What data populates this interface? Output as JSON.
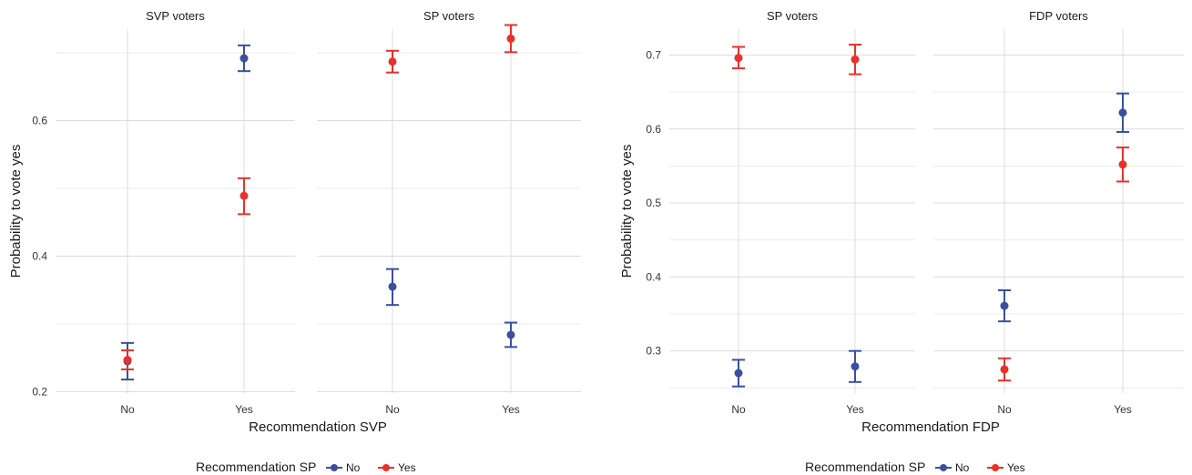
{
  "colors": {
    "No": "#3b4fa0",
    "Yes": "#e8312a"
  },
  "chart_data": [
    {
      "type": "scatter",
      "ylabel": "Probability to vote yes",
      "xlabel": "Recommendation SVP",
      "ylim": [
        0.198,
        0.735
      ],
      "y_major_ticks": [
        0.2,
        0.4,
        0.6
      ],
      "y_tick_labels": [
        "0.2",
        "0.4",
        "0.6"
      ],
      "y_minor_ticks": [
        0.3,
        0.5,
        0.7
      ],
      "categories": [
        "No",
        "Yes"
      ],
      "legend": {
        "title": "Recommendation SP",
        "entries": [
          "No",
          "Yes"
        ],
        "position": "bottom"
      },
      "panels": [
        {
          "strip": "SVP voters",
          "series": [
            {
              "name": "No",
              "points": [
                {
                  "x": "No",
                  "y": 0.245,
                  "lo": 0.218,
                  "hi": 0.272
                },
                {
                  "x": "Yes",
                  "y": 0.692,
                  "lo": 0.673,
                  "hi": 0.711
                }
              ]
            },
            {
              "name": "Yes",
              "points": [
                {
                  "x": "No",
                  "y": 0.247,
                  "lo": 0.233,
                  "hi": 0.261
                },
                {
                  "x": "Yes",
                  "y": 0.489,
                  "lo": 0.462,
                  "hi": 0.515
                }
              ]
            }
          ]
        },
        {
          "strip": "SP voters",
          "series": [
            {
              "name": "No",
              "points": [
                {
                  "x": "No",
                  "y": 0.355,
                  "lo": 0.328,
                  "hi": 0.381
                },
                {
                  "x": "Yes",
                  "y": 0.284,
                  "lo": 0.266,
                  "hi": 0.302
                }
              ]
            },
            {
              "name": "Yes",
              "points": [
                {
                  "x": "No",
                  "y": 0.687,
                  "lo": 0.671,
                  "hi": 0.703
                },
                {
                  "x": "Yes",
                  "y": 0.721,
                  "lo": 0.701,
                  "hi": 0.741
                }
              ]
            }
          ]
        }
      ]
    },
    {
      "type": "scatter",
      "ylabel": "Probability to vote yes",
      "xlabel": "Recommendation FDP",
      "ylim": [
        0.243,
        0.735
      ],
      "y_major_ticks": [
        0.3,
        0.4,
        0.5,
        0.6,
        0.7
      ],
      "y_tick_labels": [
        "0.3",
        "0.4",
        "0.5",
        "0.6",
        "0.7"
      ],
      "y_minor_ticks": [
        0.25,
        0.35,
        0.45,
        0.55,
        0.65
      ],
      "categories": [
        "No",
        "Yes"
      ],
      "legend": {
        "title": "Recommendation SP",
        "entries": [
          "No",
          "Yes"
        ],
        "position": "bottom"
      },
      "panels": [
        {
          "strip": "SP voters",
          "series": [
            {
              "name": "No",
              "points": [
                {
                  "x": "No",
                  "y": 0.27,
                  "lo": 0.252,
                  "hi": 0.288
                },
                {
                  "x": "Yes",
                  "y": 0.279,
                  "lo": 0.258,
                  "hi": 0.3
                }
              ]
            },
            {
              "name": "Yes",
              "points": [
                {
                  "x": "No",
                  "y": 0.696,
                  "lo": 0.682,
                  "hi": 0.711
                },
                {
                  "x": "Yes",
                  "y": 0.694,
                  "lo": 0.674,
                  "hi": 0.714
                }
              ]
            }
          ]
        },
        {
          "strip": "FDP voters",
          "series": [
            {
              "name": "No",
              "points": [
                {
                  "x": "No",
                  "y": 0.361,
                  "lo": 0.34,
                  "hi": 0.382
                },
                {
                  "x": "Yes",
                  "y": 0.622,
                  "lo": 0.596,
                  "hi": 0.648
                }
              ]
            },
            {
              "name": "Yes",
              "points": [
                {
                  "x": "No",
                  "y": 0.275,
                  "lo": 0.26,
                  "hi": 0.29
                },
                {
                  "x": "Yes",
                  "y": 0.552,
                  "lo": 0.529,
                  "hi": 0.575
                }
              ]
            }
          ]
        }
      ]
    }
  ]
}
